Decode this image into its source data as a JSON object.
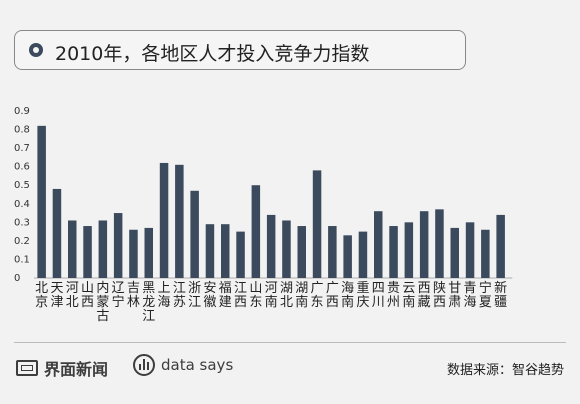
{
  "header": {
    "title": "2010年，各地区人才投入竞争力指数"
  },
  "chart_data": {
    "type": "bar",
    "categories": [
      "北京",
      "天津",
      "河北",
      "山西",
      "内蒙古",
      "辽宁",
      "吉林",
      "黑龙江",
      "上海",
      "江苏",
      "浙江",
      "安徽",
      "福建",
      "江西",
      "山东",
      "河南",
      "湖北",
      "湖南",
      "广东",
      "广西",
      "海南",
      "重庆",
      "四川",
      "贵州",
      "云南",
      "西藏",
      "陕西",
      "甘肃",
      "青海",
      "宁夏",
      "新疆"
    ],
    "values": [
      0.82,
      0.48,
      0.31,
      0.28,
      0.31,
      0.35,
      0.26,
      0.27,
      0.62,
      0.61,
      0.47,
      0.29,
      0.29,
      0.25,
      0.5,
      0.34,
      0.31,
      0.28,
      0.58,
      0.28,
      0.23,
      0.25,
      0.36,
      0.28,
      0.3,
      0.36,
      0.37,
      0.27,
      0.3,
      0.26,
      0.34
    ],
    "y_ticks": [
      "0",
      "0.1",
      "0.2",
      "0.3",
      "0.4",
      "0.5",
      "0.6",
      "0.7",
      "0.8",
      "0.9"
    ],
    "ylim": [
      0,
      0.9
    ],
    "bar_color": "#3b4a5c"
  },
  "footer": {
    "brand1": "界面新闻",
    "brand2": "data says",
    "source": "数据来源：智谷趋势"
  }
}
